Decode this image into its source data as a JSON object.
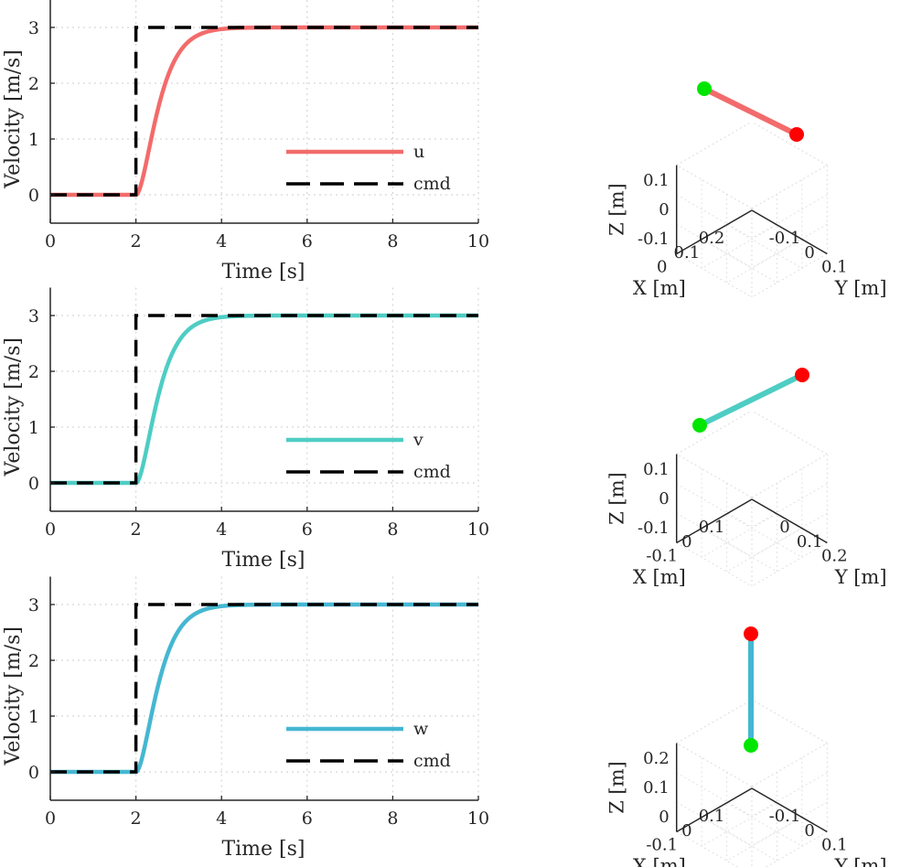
{
  "chart_data": [
    {
      "type": "line",
      "title": "",
      "xlabel": "Time [s]",
      "ylabel": "Velocity [m/s]",
      "xlim": [
        0,
        10
      ],
      "ylim": [
        -0.5,
        3.5
      ],
      "xticks": [
        "0",
        "2",
        "4",
        "6",
        "8",
        "10"
      ],
      "yticks": [
        "0",
        "1",
        "2",
        "3"
      ],
      "grid": true,
      "legend_position": "lower-right",
      "series": [
        {
          "name": "u",
          "color": "#f36b6b",
          "style": "solid",
          "step_time": 2,
          "final_value": 3,
          "time_constant": 0.3
        },
        {
          "name": "cmd",
          "color": "#000000",
          "style": "dashed",
          "x": [
            0,
            2,
            2,
            10
          ],
          "y": [
            0,
            0,
            3,
            3
          ]
        }
      ]
    },
    {
      "type": "line",
      "title": "",
      "xlabel": "Time [s]",
      "ylabel": "Velocity [m/s]",
      "xlim": [
        0,
        10
      ],
      "ylim": [
        -0.5,
        3.5
      ],
      "xticks": [
        "0",
        "2",
        "4",
        "6",
        "8",
        "10"
      ],
      "yticks": [
        "0",
        "1",
        "2",
        "3"
      ],
      "grid": true,
      "legend_position": "lower-right",
      "series": [
        {
          "name": "v",
          "color": "#4ecdc4",
          "style": "solid",
          "step_time": 2,
          "final_value": 3,
          "time_constant": 0.3
        },
        {
          "name": "cmd",
          "color": "#000000",
          "style": "dashed",
          "x": [
            0,
            2,
            2,
            10
          ],
          "y": [
            0,
            0,
            3,
            3
          ]
        }
      ]
    },
    {
      "type": "line",
      "title": "",
      "xlabel": "Time [s]",
      "ylabel": "Velocity [m/s]",
      "xlim": [
        0,
        10
      ],
      "ylim": [
        -0.5,
        3.5
      ],
      "xticks": [
        "0",
        "2",
        "4",
        "6",
        "8",
        "10"
      ],
      "yticks": [
        "0",
        "1",
        "2",
        "3"
      ],
      "grid": true,
      "legend_position": "lower-right",
      "series": [
        {
          "name": "w",
          "color": "#45b7d1",
          "style": "solid",
          "step_time": 2,
          "final_value": 3,
          "time_constant": 0.3
        },
        {
          "name": "cmd",
          "color": "#000000",
          "style": "dashed",
          "x": [
            0,
            2,
            2,
            10
          ],
          "y": [
            0,
            0,
            3,
            3
          ]
        }
      ]
    },
    {
      "type": "line3d",
      "xlabel": "X [m]",
      "ylabel": "Y [m]",
      "zlabel": "Z [m]",
      "xticks": [
        "0",
        "0.1",
        "0.2"
      ],
      "yticks": [
        "-0.1",
        "0",
        "0.1"
      ],
      "zticks": [
        "-0.1",
        "0",
        "0.1"
      ],
      "line_color": "#f36b6b",
      "start": {
        "x": 0,
        "y": 0,
        "z": 0,
        "color": "#00e600"
      },
      "end": {
        "x": 0.2,
        "y": 0,
        "z": 0,
        "color": "#ff0000"
      }
    },
    {
      "type": "line3d",
      "xlabel": "X [m]",
      "ylabel": "Y [m]",
      "zlabel": "Z [m]",
      "xticks": [
        "-0.1",
        "0",
        "0.1"
      ],
      "yticks": [
        "0",
        "0.1",
        "0.2"
      ],
      "zticks": [
        "-0.1",
        "0",
        "0.1"
      ],
      "line_color": "#4ecdc4",
      "start": {
        "x": 0,
        "y": 0,
        "z": 0,
        "color": "#00e600"
      },
      "end": {
        "x": 0,
        "y": 0.2,
        "z": 0,
        "color": "#ff0000"
      }
    },
    {
      "type": "line3d",
      "xlabel": "X [m]",
      "ylabel": "Y [m]",
      "zlabel": "Z [m]",
      "xticks": [
        "-0.1",
        "0",
        "0.1"
      ],
      "yticks": [
        "-0.1",
        "0",
        "0.1"
      ],
      "zticks": [
        "0",
        "0.1",
        "0.2"
      ],
      "line_color": "#45b7d1",
      "start": {
        "x": 0,
        "y": 0,
        "z": 0,
        "color": "#00e600"
      },
      "end": {
        "x": 0,
        "y": 0,
        "z": 0.2,
        "color": "#ff0000"
      }
    }
  ]
}
